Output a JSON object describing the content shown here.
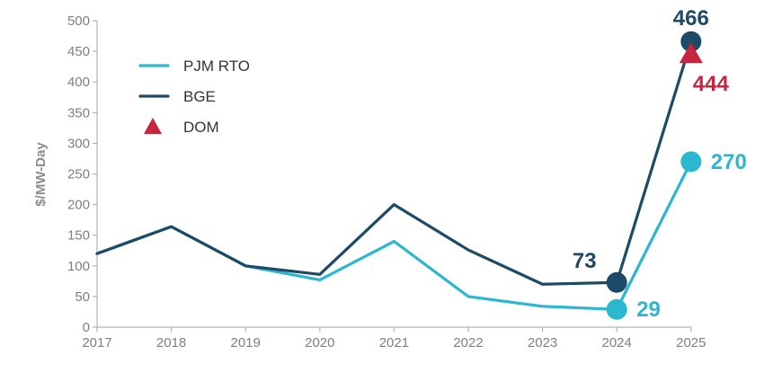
{
  "chart_data": {
    "type": "line",
    "ylabel": "$/MW-Day",
    "xlabel": "",
    "ylim": [
      0,
      500
    ],
    "yticks": [
      0,
      50,
      100,
      150,
      200,
      250,
      300,
      350,
      400,
      450,
      500
    ],
    "categories": [
      "2017",
      "2018",
      "2019",
      "2020",
      "2021",
      "2022",
      "2023",
      "2024",
      "2025"
    ],
    "grid": false,
    "legend_position": "top-left",
    "series": [
      {
        "name": "PJM RTO",
        "type": "line",
        "color": "#2ab7cf",
        "values": [
          120,
          164,
          100,
          77,
          140,
          50,
          34,
          29,
          270
        ]
      },
      {
        "name": "BGE",
        "type": "line",
        "color": "#1d4a66",
        "values": [
          120,
          164,
          100,
          86,
          200,
          126,
          70,
          73,
          466
        ]
      },
      {
        "name": "DOM",
        "type": "marker",
        "color": "#c8233f",
        "values": [
          null,
          null,
          null,
          null,
          null,
          null,
          null,
          null,
          444
        ]
      }
    ],
    "annotations": [
      {
        "series": "BGE",
        "category": "2024",
        "text": "73",
        "color": "#1d4a66"
      },
      {
        "series": "PJM RTO",
        "category": "2024",
        "text": "29",
        "color": "#2ab7cf"
      },
      {
        "series": "BGE",
        "category": "2025",
        "text": "466",
        "color": "#1d4a66"
      },
      {
        "series": "DOM",
        "category": "2025",
        "text": "444",
        "color": "#c8233f"
      },
      {
        "series": "PJM RTO",
        "category": "2025",
        "text": "270",
        "color": "#2ab7cf"
      }
    ]
  }
}
